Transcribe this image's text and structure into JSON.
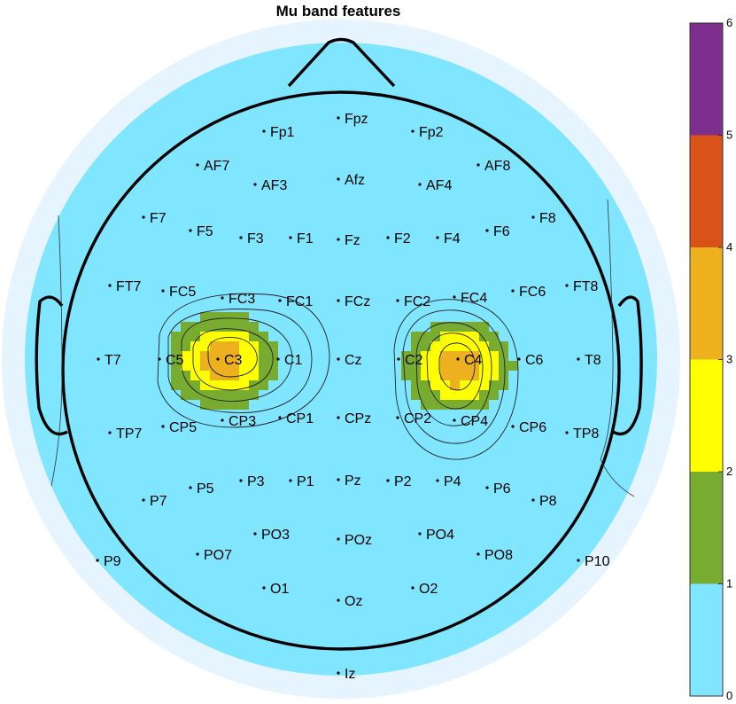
{
  "chart_data": {
    "type": "heatmap",
    "subtype": "topographic-scalp-map",
    "title": "Mu band features",
    "colorbar": {
      "ticks": [
        "0",
        "1",
        "2",
        "3",
        "4",
        "5",
        "6"
      ],
      "range": [
        0,
        6
      ],
      "levels": [
        {
          "from": 0,
          "to": 1,
          "color": "#80E5FF"
        },
        {
          "from": 1,
          "to": 2,
          "color": "#77AC30"
        },
        {
          "from": 2,
          "to": 3,
          "color": "#FFFF00"
        },
        {
          "from": 3,
          "to": 4,
          "color": "#EDB120"
        },
        {
          "from": 4,
          "to": 5,
          "color": "#D95319"
        },
        {
          "from": 5,
          "to": 6,
          "color": "#7E2F8E"
        }
      ]
    },
    "hotspots": [
      {
        "electrode": "C3",
        "peak_value": 3.7
      },
      {
        "electrode": "C4",
        "peak_value": 3.7
      }
    ],
    "electrodes": [
      "Fpz",
      "Fp1",
      "Fp2",
      "AF7",
      "AF3",
      "Afz",
      "AF4",
      "AF8",
      "F7",
      "F5",
      "F3",
      "F1",
      "Fz",
      "F2",
      "F4",
      "F6",
      "F8",
      "FT7",
      "FC5",
      "FC3",
      "FC1",
      "FCz",
      "FC2",
      "FC4",
      "FC6",
      "FT8",
      "T7",
      "C5",
      "C3",
      "C1",
      "Cz",
      "C2",
      "C4",
      "C6",
      "T8",
      "TP7",
      "CP5",
      "CP3",
      "CP1",
      "CPz",
      "CP2",
      "CP4",
      "CP6",
      "TP8",
      "P7",
      "P5",
      "P3",
      "P1",
      "Pz",
      "P2",
      "P4",
      "P6",
      "P8",
      "PO3",
      "POz",
      "PO4",
      "P9",
      "PO7",
      "PO8",
      "P10",
      "O1",
      "Oz",
      "O2",
      "Iz"
    ]
  }
}
